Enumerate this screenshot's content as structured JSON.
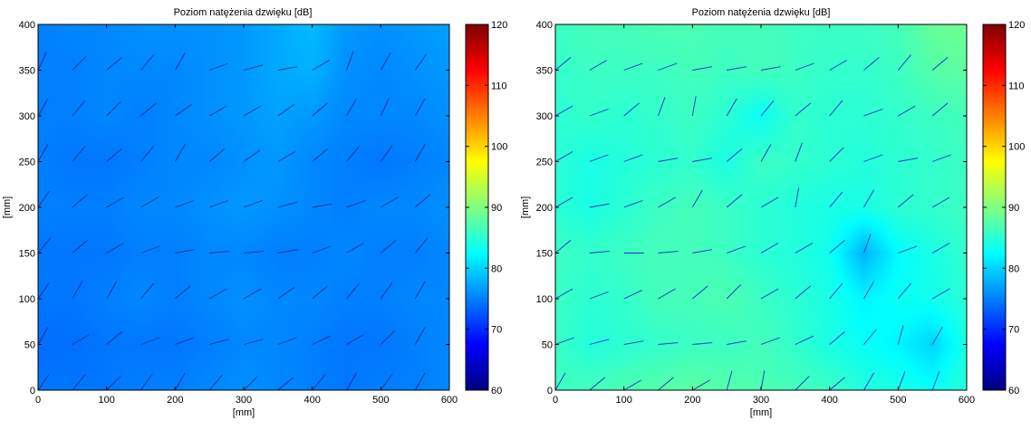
{
  "chart_data": [
    {
      "type": "heatmap",
      "title": "Poziom natężenia dzwięku [dB]",
      "xlabel": "[mm]",
      "ylabel": "[mm]",
      "xlim": [
        0,
        600
      ],
      "ylim": [
        0,
        400
      ],
      "x_ticks": [
        0,
        100,
        200,
        300,
        400,
        500,
        600
      ],
      "y_ticks": [
        0,
        50,
        100,
        150,
        200,
        250,
        300,
        350,
        400
      ],
      "colorbar": {
        "clim": [
          60,
          120
        ],
        "ticks": [
          60,
          70,
          80,
          90,
          100,
          110,
          120
        ],
        "colormap": "jet"
      },
      "field": {
        "x": [
          0,
          50,
          100,
          150,
          200,
          250,
          300,
          350,
          400,
          450,
          500,
          550,
          600
        ],
        "y": [
          0,
          50,
          100,
          150,
          200,
          250,
          300,
          350,
          400
        ],
        "values": [
          [
            74.5,
            74.5,
            74.5,
            75,
            75,
            75.5,
            76,
            75.5,
            75,
            74.5,
            75,
            75,
            75.5
          ],
          [
            74,
            74,
            74.5,
            74.5,
            74.5,
            75,
            75.5,
            75.5,
            75,
            74.5,
            74.5,
            75,
            75.5
          ],
          [
            74.5,
            74.5,
            75,
            75.5,
            75,
            75.5,
            76,
            75.5,
            75.5,
            75,
            75,
            75.5,
            75.5
          ],
          [
            74.5,
            74.5,
            74.5,
            75,
            75,
            75.5,
            75.5,
            75,
            75,
            75.5,
            75,
            75,
            75.5
          ],
          [
            75,
            75,
            75,
            75.5,
            75.5,
            76,
            76.5,
            76,
            75.5,
            75,
            75.5,
            75.5,
            76
          ],
          [
            75,
            74.5,
            74.5,
            75,
            75.5,
            75.5,
            76,
            76.5,
            75.5,
            75,
            74.5,
            75,
            75.5
          ],
          [
            75,
            75,
            75.5,
            75,
            75.5,
            76,
            76.5,
            77,
            76.5,
            75.5,
            75.5,
            75.5,
            76
          ],
          [
            75,
            75,
            75.5,
            75.5,
            75.5,
            76,
            76.5,
            77.5,
            78,
            76,
            75.5,
            76,
            76.5
          ],
          [
            75,
            75.5,
            75.5,
            76,
            76,
            76,
            76.5,
            77.5,
            78.5,
            76.5,
            76,
            76.5,
            77
          ]
        ]
      },
      "vectors": {
        "x": [
          0,
          50,
          100,
          150,
          200,
          250,
          300,
          350,
          400,
          450,
          500,
          550,
          600
        ],
        "y": [
          0,
          50,
          100,
          150,
          200,
          250,
          300,
          350,
          400
        ],
        "angles_deg": [
          [
            55,
            50,
            45,
            55,
            60,
            50,
            45,
            40,
            50,
            60,
            55,
            60,
            60
          ],
          [
            60,
            30,
            40,
            20,
            20,
            15,
            15,
            20,
            25,
            30,
            45,
            60,
            60
          ],
          [
            55,
            60,
            60,
            50,
            40,
            30,
            30,
            35,
            40,
            50,
            55,
            60,
            60
          ],
          [
            50,
            40,
            30,
            20,
            10,
            5,
            5,
            10,
            20,
            30,
            40,
            50,
            55
          ],
          [
            55,
            40,
            30,
            30,
            20,
            20,
            20,
            15,
            10,
            20,
            30,
            40,
            60
          ],
          [
            60,
            50,
            40,
            50,
            60,
            40,
            35,
            30,
            40,
            50,
            55,
            60,
            60
          ],
          [
            60,
            50,
            45,
            40,
            35,
            30,
            30,
            35,
            40,
            60,
            65,
            60,
            60
          ],
          [
            65,
            45,
            40,
            50,
            60,
            20,
            15,
            10,
            30,
            70,
            60,
            55,
            60
          ],
          [
            70,
            60,
            50,
            60,
            50,
            45,
            40,
            45,
            60,
            60,
            55,
            50,
            60
          ]
        ]
      }
    },
    {
      "type": "heatmap",
      "title": "Poziom natężenia dzwięku [dB]",
      "xlabel": "[mm]",
      "ylabel": "[mm]",
      "xlim": [
        0,
        600
      ],
      "ylim": [
        0,
        400
      ],
      "x_ticks": [
        0,
        100,
        200,
        300,
        400,
        500,
        600
      ],
      "y_ticks": [
        0,
        50,
        100,
        150,
        200,
        250,
        300,
        350,
        400
      ],
      "colorbar": {
        "clim": [
          60,
          120
        ],
        "ticks": [
          60,
          70,
          80,
          90,
          100,
          110,
          120
        ],
        "colormap": "jet"
      },
      "field": {
        "x": [
          0,
          50,
          100,
          150,
          200,
          250,
          300,
          350,
          400,
          450,
          500,
          550,
          600
        ],
        "y": [
          0,
          50,
          100,
          150,
          200,
          250,
          300,
          350,
          400
        ],
        "values": [
          [
            86,
            86.5,
            87,
            87.5,
            88,
            87.5,
            87,
            86.5,
            86,
            84.5,
            84,
            83,
            85
          ],
          [
            86,
            84.5,
            85,
            85.5,
            86,
            86,
            86.5,
            85.5,
            84,
            83,
            82,
            80,
            84
          ],
          [
            86,
            85,
            85.5,
            86.5,
            86.5,
            87,
            86,
            85,
            84,
            82,
            83,
            83.5,
            85
          ],
          [
            86,
            85.5,
            86,
            86.5,
            86.5,
            86,
            85,
            84.5,
            83.5,
            78,
            82.5,
            84,
            85.5
          ],
          [
            85,
            84,
            85,
            86,
            86.5,
            86,
            85,
            84.5,
            84,
            84,
            85,
            85.5,
            86
          ],
          [
            85,
            84,
            84.5,
            85,
            85.5,
            84,
            86,
            85.5,
            85,
            84.5,
            85,
            85.5,
            86
          ],
          [
            85,
            85.5,
            85,
            85.5,
            86,
            85,
            83,
            85.5,
            85,
            85,
            85.5,
            86,
            86.5
          ],
          [
            85.5,
            86,
            86,
            86,
            86.5,
            86,
            86.5,
            86,
            85.5,
            85.5,
            86,
            87.5,
            88
          ],
          [
            86,
            86.5,
            86.5,
            87,
            87,
            86.5,
            86.5,
            86,
            86,
            86,
            86.5,
            88.5,
            89
          ]
        ]
      },
      "vectors": {
        "x": [
          0,
          50,
          100,
          150,
          200,
          250,
          300,
          350,
          400,
          450,
          500,
          550,
          600
        ],
        "y": [
          0,
          50,
          100,
          150,
          200,
          250,
          300,
          350,
          400
        ],
        "angles_deg": [
          [
            60,
            40,
            30,
            40,
            30,
            75,
            80,
            45,
            40,
            60,
            70,
            70,
            60
          ],
          [
            20,
            15,
            10,
            5,
            5,
            10,
            20,
            25,
            40,
            50,
            75,
            60,
            50
          ],
          [
            30,
            20,
            25,
            30,
            40,
            45,
            30,
            40,
            50,
            60,
            50,
            30,
            40
          ],
          [
            40,
            5,
            0,
            5,
            10,
            20,
            30,
            30,
            40,
            70,
            20,
            30,
            40
          ],
          [
            30,
            10,
            20,
            30,
            60,
            40,
            30,
            80,
            50,
            60,
            40,
            30,
            40
          ],
          [
            30,
            20,
            20,
            10,
            10,
            40,
            60,
            70,
            45,
            20,
            10,
            20,
            30
          ],
          [
            30,
            20,
            40,
            70,
            80,
            60,
            50,
            40,
            50,
            20,
            30,
            40,
            40
          ],
          [
            40,
            30,
            20,
            20,
            10,
            10,
            10,
            20,
            30,
            40,
            50,
            40,
            30
          ],
          [
            40,
            30,
            20,
            20,
            10,
            10,
            10,
            20,
            30,
            40,
            50,
            40,
            30
          ]
        ]
      }
    }
  ]
}
